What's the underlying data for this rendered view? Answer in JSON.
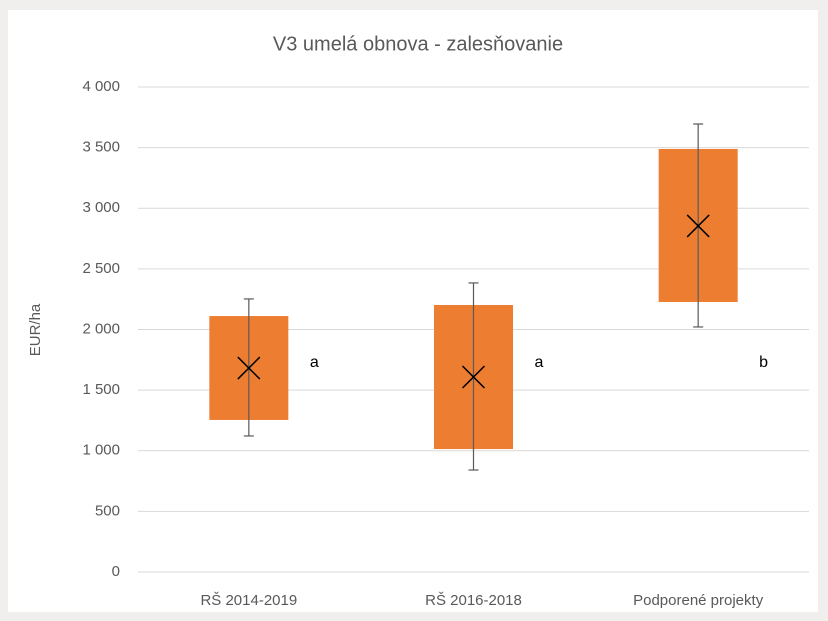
{
  "chart_data": {
    "type": "box",
    "title": "V3 umelá obnova - zalesňovanie",
    "y_label": "EUR/ha",
    "categories": [
      "RŠ 2014-2019",
      "RŠ 2016-2018",
      "Podporené projekty"
    ],
    "color": "#ed7d31",
    "low": [
      1254,
      1014,
      2227
    ],
    "high": [
      2111,
      2202,
      3489
    ],
    "whisker_low": [
      1122,
      841,
      2021
    ],
    "whisker_high": [
      2252,
      2384,
      3695
    ],
    "mean": [
      1682,
      1608,
      2854
    ],
    "annotations": [
      "a",
      "a",
      "b"
    ],
    "ylim": [
      0,
      4000
    ],
    "yticks": [
      0,
      500,
      {
        "value": 1000,
        "label": "1 000"
      },
      {
        "value": 1500,
        "label": "1 500"
      },
      {
        "value": 2000,
        "label": "2 000"
      },
      {
        "value": 2500,
        "label": "2 500"
      },
      {
        "value": 3000,
        "label": "3 000"
      },
      {
        "value": 3500,
        "label": "3 500"
      },
      {
        "value": 4000,
        "label": "4 000"
      }
    ],
    "grid": true
  }
}
